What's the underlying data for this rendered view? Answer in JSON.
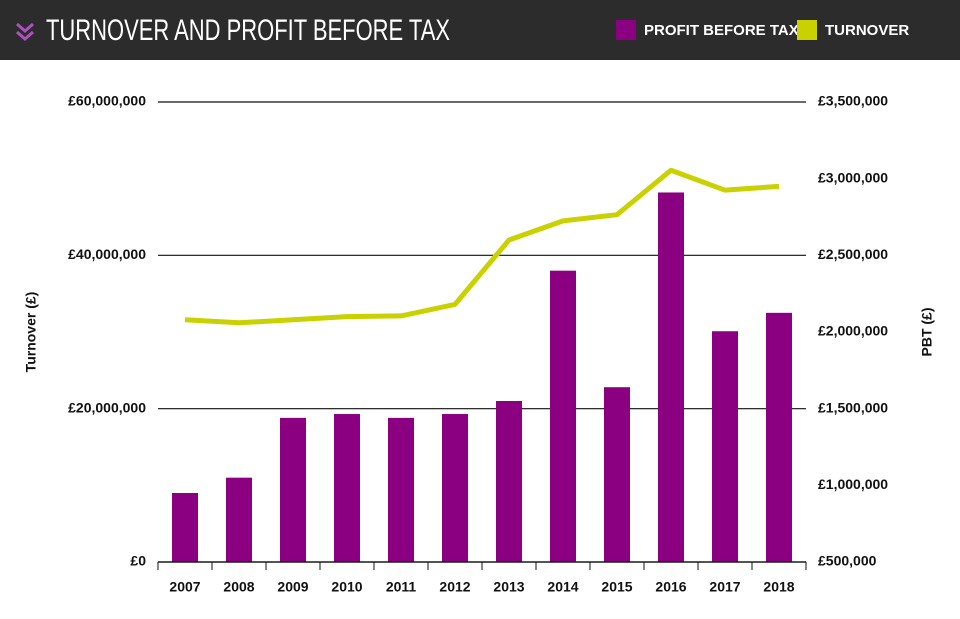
{
  "chart_data": {
    "type": "bar-line",
    "title": "TURNOVER AND PROFIT BEFORE TAX",
    "y_label": "Turnover (£)",
    "y2_label": "PBT (£)",
    "categories": [
      "2007",
      "2008",
      "2009",
      "2010",
      "2011",
      "2012",
      "2013",
      "2014",
      "2015",
      "2016",
      "2017",
      "2018"
    ],
    "series": [
      {
        "name": "PROFIT BEFORE TAX",
        "color": "#8b0080",
        "kind": "bar",
        "axis": "y2",
        "values": [
          950000,
          1050000,
          1440000,
          1465000,
          1440000,
          1465000,
          1550000,
          2400000,
          1640000,
          2910000,
          2005000,
          2125000
        ]
      },
      {
        "name": "TURNOVER",
        "color": "#c9d200",
        "kind": "line",
        "axis": "y",
        "values": [
          31600000,
          31200000,
          31600000,
          32000000,
          32100000,
          33600000,
          42000000,
          44500000,
          45300000,
          51100000,
          48500000,
          49000000
        ]
      }
    ],
    "ylim": [
      0,
      60000000
    ],
    "yticks": [
      {
        "value": 0,
        "label": "£0"
      },
      {
        "value": 20000000,
        "label": "£20,000,000"
      },
      {
        "value": 40000000,
        "label": "£40,000,000"
      },
      {
        "value": 60000000,
        "label": "£60,000,000"
      }
    ],
    "y2lim": [
      500000,
      3500000
    ],
    "y2ticks": [
      {
        "value": 500000,
        "label": "£500,000"
      },
      {
        "value": 1000000,
        "label": "£1,000,000"
      },
      {
        "value": 1500000,
        "label": "£1,500,000"
      },
      {
        "value": 2000000,
        "label": "£2,000,000"
      },
      {
        "value": 2500000,
        "label": "£2,500,000"
      },
      {
        "value": 3000000,
        "label": "£3,000,000"
      },
      {
        "value": 3500000,
        "label": "£3,500,000"
      }
    ],
    "grid": true,
    "legend": "top-right"
  }
}
